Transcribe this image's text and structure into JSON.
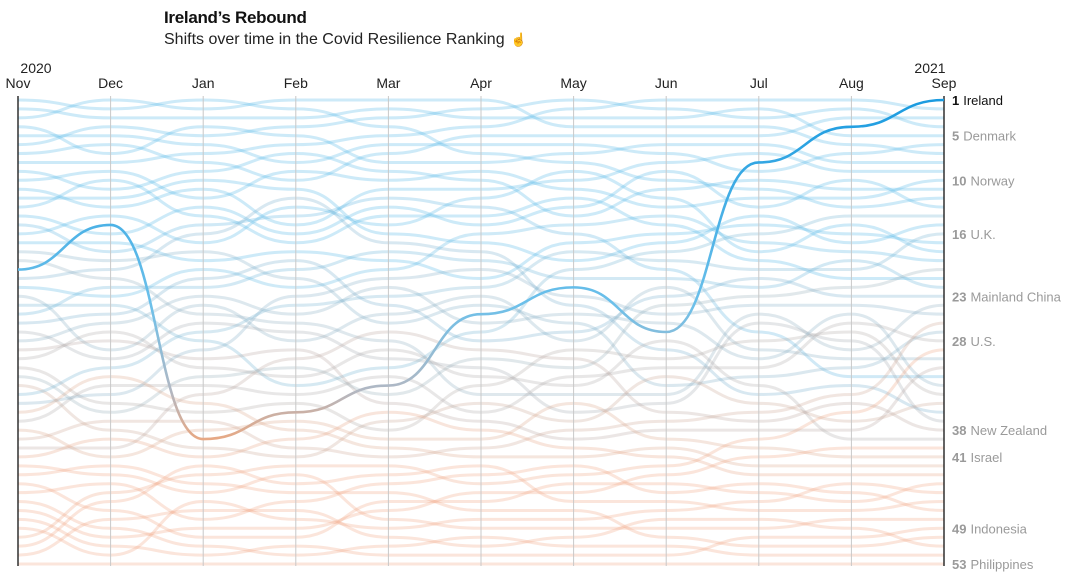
{
  "header": {
    "title": "Ireland’s Rebound",
    "subtitle": "Shifts over time in the Covid Resilience Ranking",
    "icon": "pointer-hand-icon"
  },
  "chart_data": {
    "type": "line",
    "subtype": "bump",
    "title": "Ireland’s Rebound",
    "subtitle": "Shifts over time in the Covid Resilience Ranking",
    "x": [
      "Nov",
      "Dec",
      "Jan",
      "Feb",
      "Mar",
      "Apr",
      "May",
      "Jun",
      "Jul",
      "Aug",
      "Sep"
    ],
    "year_labels": {
      "start": "2020",
      "end": "2021"
    },
    "ylim": [
      1,
      53
    ],
    "y_inverted": true,
    "highlight_series": {
      "name": "Ireland",
      "values": [
        20,
        15,
        39,
        36,
        33,
        25,
        22,
        27,
        8,
        4,
        1
      ]
    },
    "end_labels": [
      {
        "rank": "1",
        "name": "Ireland",
        "highlight": true
      },
      {
        "rank": "5",
        "name": "Denmark"
      },
      {
        "rank": "10",
        "name": "Norway"
      },
      {
        "rank": "16",
        "name": "U.K."
      },
      {
        "rank": "23",
        "name": "Mainland China"
      },
      {
        "rank": "28",
        "name": "U.S."
      },
      {
        "rank": "38",
        "name": "New Zealand"
      },
      {
        "rank": "41",
        "name": "Israel"
      },
      {
        "rank": "49",
        "name": "Indonesia"
      },
      {
        "rank": "53",
        "name": "Philippines"
      }
    ],
    "colors": {
      "top": "#4db2e6",
      "bottom": "#f0a27c",
      "highlight": "#1a9be0"
    }
  }
}
